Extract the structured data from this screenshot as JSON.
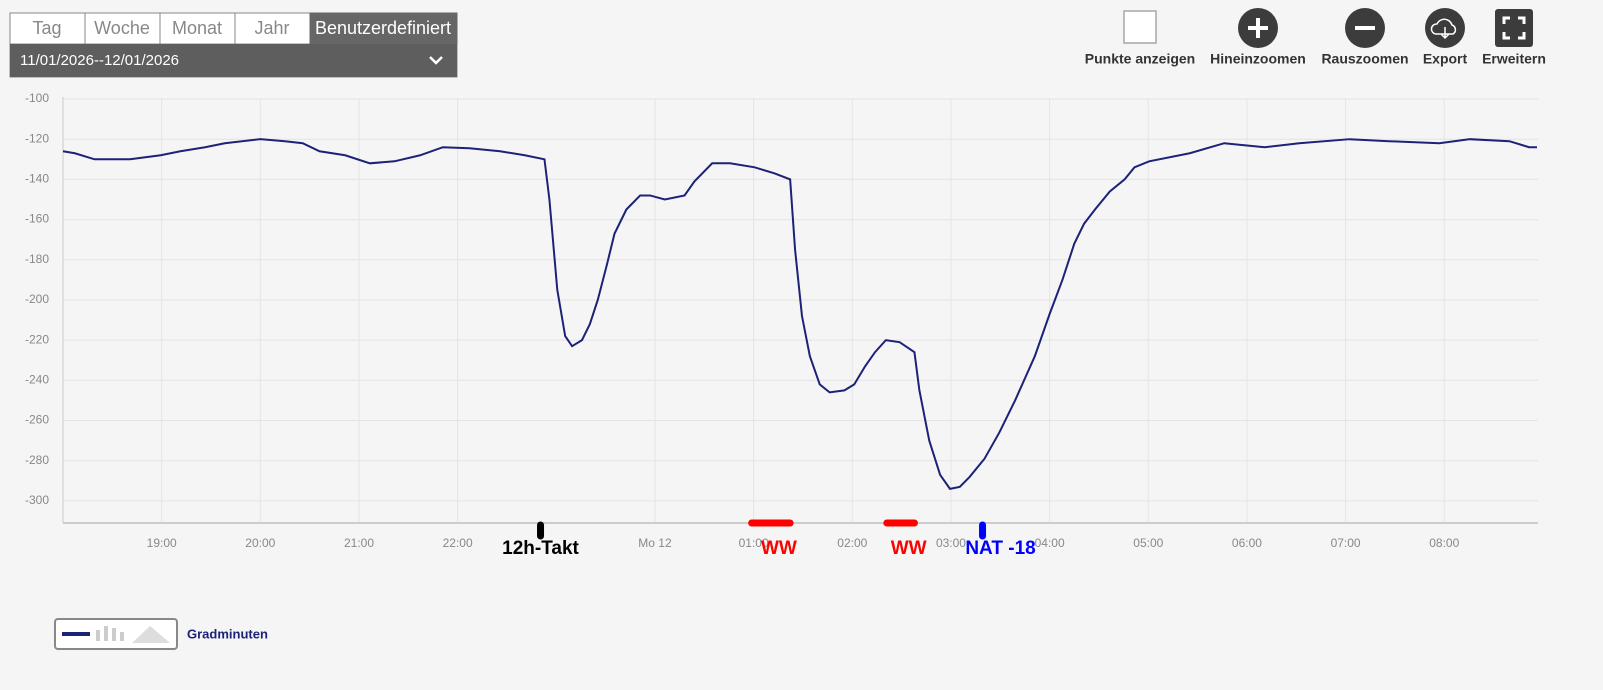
{
  "tabs": [
    "Tag",
    "Woche",
    "Monat",
    "Jahr",
    "Benutzerdefiniert"
  ],
  "date_range": "11/01/2026--12/01/2026",
  "toolbar": [
    "Punkte anzeigen",
    "Hineinzoomen",
    "Rauszoomen",
    "Export",
    "Erweitern"
  ],
  "chart_data": {
    "type": "line",
    "x": [
      18.0,
      18.12,
      18.32,
      18.68,
      18.99,
      19.19,
      19.44,
      19.64,
      20.0,
      20.25,
      20.43,
      20.6,
      20.86,
      21.11,
      21.36,
      21.62,
      21.85,
      22.12,
      22.43,
      22.68,
      22.88,
      22.93,
      23.01,
      23.09,
      23.16,
      23.26,
      23.34,
      23.42,
      23.51,
      23.59,
      23.71,
      23.85,
      23.95,
      24.1,
      24.3,
      24.4,
      24.58,
      24.76,
      25.01,
      25.21,
      25.37,
      25.42,
      25.49,
      25.57,
      25.67,
      25.77,
      25.92,
      26.02,
      26.13,
      26.23,
      26.34,
      26.48,
      26.63,
      26.68,
      26.78,
      26.89,
      26.99,
      27.09,
      27.19,
      27.34,
      27.49,
      27.65,
      27.85,
      28.0,
      28.13,
      28.25,
      28.35,
      28.46,
      28.61,
      28.76,
      28.86,
      29.01,
      29.42,
      29.77,
      30.18,
      30.53,
      31.04,
      31.44,
      31.95,
      32.26,
      32.66,
      32.86,
      32.94
    ],
    "series": [
      {
        "name": "Gradminuten",
        "color": "#1b2277",
        "values": [
          -126,
          -127,
          -130,
          -130,
          -128,
          -126,
          -124,
          -122,
          -120,
          -121,
          -122,
          -126,
          -128,
          -132,
          -131,
          -128,
          -124,
          -124.5,
          -126,
          -128,
          -130,
          -150,
          -195,
          -218,
          -223,
          -220,
          -212,
          -200,
          -183,
          -167,
          -155,
          -148,
          -148,
          -150,
          -148,
          -141,
          -132,
          -132,
          -134,
          -137,
          -140,
          -175,
          -208,
          -228,
          -242,
          -246,
          -245,
          -242,
          -233,
          -226,
          -220,
          -221,
          -226,
          -245,
          -270,
          -287,
          -294,
          -293,
          -288,
          -279,
          -266,
          -250,
          -228,
          -207,
          -190,
          -172,
          -162,
          -155,
          -146,
          -140,
          -134,
          -131,
          -127,
          -122,
          -124,
          -122,
          -120,
          -121,
          -122,
          -120,
          -121,
          -124,
          -124
        ]
      }
    ],
    "xlim": [
      18,
      32.95
    ],
    "xticks": [
      {
        "value": 19,
        "label": "19:00"
      },
      {
        "value": 20,
        "label": "20:00"
      },
      {
        "value": 21,
        "label": "21:00"
      },
      {
        "value": 22,
        "label": "22:00"
      },
      {
        "value": 24,
        "label": "Mo 12"
      },
      {
        "value": 25,
        "label": "01:00"
      },
      {
        "value": 26,
        "label": "02:00"
      },
      {
        "value": 27,
        "label": "03:00"
      },
      {
        "value": 28,
        "label": "04:00"
      },
      {
        "value": 29,
        "label": "05:00"
      },
      {
        "value": 30,
        "label": "06:00"
      },
      {
        "value": 31,
        "label": "07:00"
      },
      {
        "value": 32,
        "label": "08:00"
      }
    ],
    "ylim": [
      -311,
      -100
    ],
    "yticks": [
      -100,
      -120,
      -140,
      -160,
      -180,
      -200,
      -220,
      -240,
      -260,
      -280,
      -300
    ],
    "grid": true,
    "annotations": [
      {
        "text": "12h-Takt",
        "x": 22.84,
        "color": "#000000"
      },
      {
        "text": "WW",
        "x": 24.98,
        "x_end": 25.37,
        "color": "#ff0000"
      },
      {
        "text": "WW",
        "x": 26.35,
        "x_end": 26.63,
        "color": "#ff0000"
      },
      {
        "text": "NAT -18",
        "x": 27.32,
        "color": "#0000ff"
      }
    ]
  }
}
